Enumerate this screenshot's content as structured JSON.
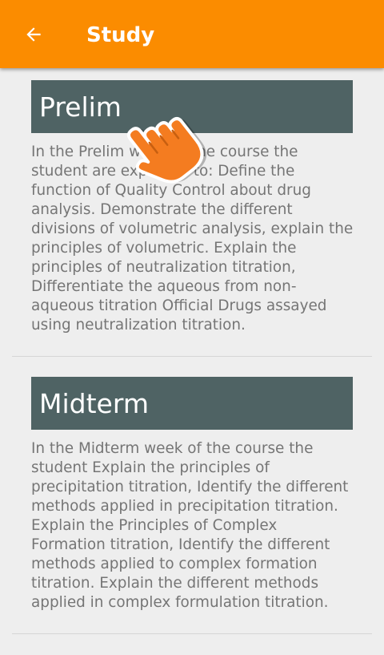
{
  "app_bar": {
    "title": "Study",
    "back_icon": "arrow-back-icon",
    "color": "#fb8c00"
  },
  "sections": [
    {
      "title": "Prelim",
      "body": "In the Prelim week of the course the student are expected to: Define the function of Quality Control about drug analysis. Demonstrate the different divisions of volumetric analysis, explain the principles of volumetric. Explain the principles of neutralization titration, Differentiate the aqueous from non-aqueous titration Official Drugs assayed using neutralization titration."
    },
    {
      "title": "Midterm",
      "body": "In the Midterm week of the course the student Explain the principles of precipitation titration, Identify the different methods applied in precipitation titration. Explain the Principles of Complex Formation titration, Identify the different methods applied to complex formation titration. Explain the different methods applied in complex formulation titration."
    }
  ],
  "overlay": {
    "icon": "tap-hand-icon"
  },
  "colors": {
    "header_bg": "#4f6364",
    "body_text": "#757575",
    "background": "#eeeeee"
  }
}
